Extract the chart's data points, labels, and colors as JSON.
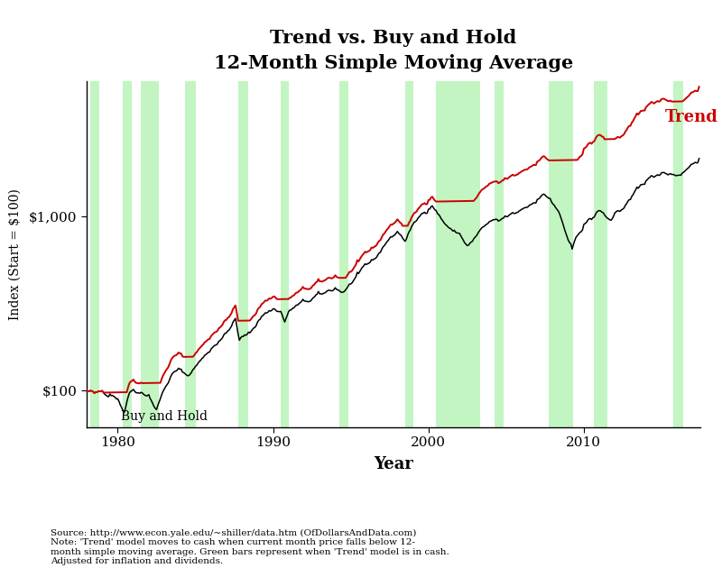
{
  "title_line1": "Trend vs. Buy and Hold",
  "title_line2": "12-Month Simple Moving Average",
  "xlabel": "Year",
  "ylabel": "Index (Start = $100)",
  "trend_color": "#cc0000",
  "hold_color": "#000000",
  "green_shade_color": "#90ee90",
  "green_shade_alpha": 0.55,
  "trend_label": "Trend",
  "hold_label": "Buy and Hold",
  "footnote": "Source: http://www.econ.yale.edu/~shiller/data.htm (OfDollarsAndData.com)\nNote: 'Trend' model moves to cash when current month price falls below 12-\nmonth simple moving average. Green bars represent when 'Trend' model is in cash.\nAdjusted for inflation and dividends.",
  "green_shading_periods": [
    [
      1978.25,
      1978.83
    ],
    [
      1980.33,
      1980.92
    ],
    [
      1981.5,
      1982.67
    ],
    [
      1984.33,
      1985.0
    ],
    [
      1987.75,
      1988.42
    ],
    [
      1990.5,
      1991.0
    ],
    [
      1994.25,
      1994.83
    ],
    [
      1998.5,
      1999.0
    ],
    [
      2000.5,
      2003.33
    ],
    [
      2004.25,
      2004.83
    ],
    [
      2007.75,
      2009.33
    ],
    [
      2010.67,
      2011.5
    ],
    [
      2015.75,
      2016.42
    ]
  ],
  "xlim": [
    1978.0,
    2017.5
  ],
  "ylim_low": 62,
  "ylim_high": 6000,
  "yticks": [
    100,
    1000
  ],
  "xticks": [
    1980,
    1990,
    2000,
    2010
  ]
}
